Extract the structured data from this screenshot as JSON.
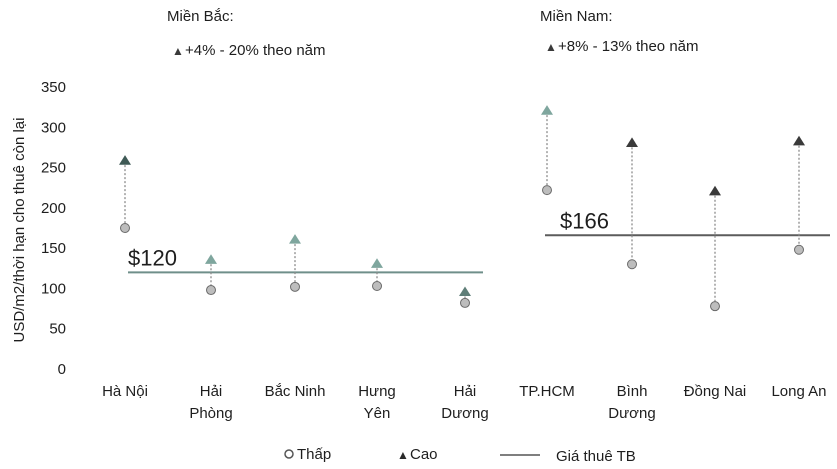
{
  "chart_data": {
    "type": "scatter",
    "ylabel": "USD/m2/thời hạn cho thuê còn lại",
    "ylim": [
      0,
      350
    ],
    "yticks": [
      "0",
      "50",
      "100",
      "150",
      "200",
      "250",
      "300",
      "350"
    ],
    "grid": false,
    "legend_position": "bottom",
    "series_legend": [
      {
        "name": "Thấp",
        "marker": "circle"
      },
      {
        "name": "Cao",
        "marker": "triangle"
      },
      {
        "name": "Giá thuê TB",
        "marker": "line"
      }
    ],
    "panels": [
      {
        "region": "Miền Bắc:",
        "growth": "+4% - 20% theo năm",
        "average_label": "$120",
        "average": 120,
        "average_color": "#6f8f8a",
        "categories": [
          {
            "line1": "Hà Nội",
            "line2": ""
          },
          {
            "line1": "Hải",
            "line2": "Phòng"
          },
          {
            "line1": "Bắc Ninh",
            "line2": ""
          },
          {
            "line1": "Hưng",
            "line2": "Yên"
          },
          {
            "line1": "Hải",
            "line2": "Dương"
          }
        ],
        "low": [
          175,
          98,
          102,
          103,
          82
        ],
        "high": [
          258,
          135,
          160,
          130,
          95
        ],
        "high_colors": [
          "#3f5a56",
          "#7fa69e",
          "#7fa69e",
          "#7fa69e",
          "#5f7e78"
        ]
      },
      {
        "region": "Miền Nam:",
        "growth": "+8% - 13% theo năm",
        "average_label": "$166",
        "average": 166,
        "average_color": "#5c5c5c",
        "categories": [
          {
            "line1": "TP.HCM",
            "line2": ""
          },
          {
            "line1": "Bình",
            "line2": "Dương"
          },
          {
            "line1": "Đồng Nai",
            "line2": ""
          },
          {
            "line1": "Long An",
            "line2": ""
          }
        ],
        "low": [
          222,
          130,
          78,
          148
        ],
        "high": [
          320,
          280,
          220,
          282
        ],
        "high_colors": [
          "#7fa69e",
          "#3a3a3a",
          "#3a3a3a",
          "#3a3a3a"
        ]
      }
    ]
  }
}
